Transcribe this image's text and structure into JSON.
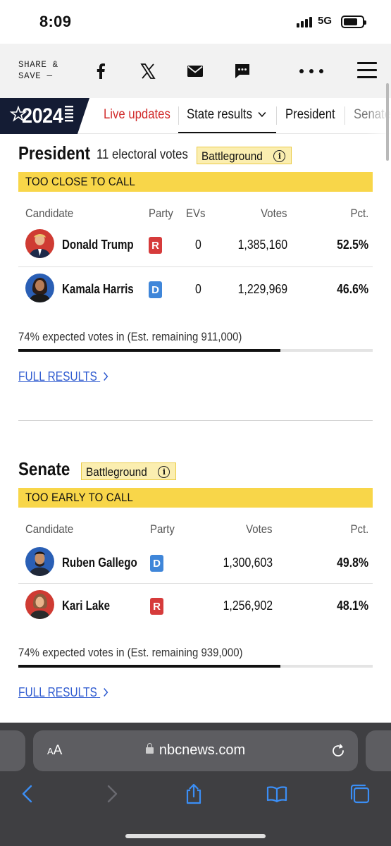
{
  "status": {
    "time": "8:09",
    "network": "5G"
  },
  "share": {
    "label": "SHARE &\nSAVE —"
  },
  "nav": {
    "year": "2024",
    "items": [
      {
        "label": "Live updates"
      },
      {
        "label": "State results"
      },
      {
        "label": "President"
      },
      {
        "label": "Senate"
      }
    ]
  },
  "colors": {
    "accent_red": "#d12b2b",
    "republican": "#d63b3b",
    "democrat": "#3f86d9",
    "call_bar": "#f8d649",
    "badge": "#fbeeb0",
    "link": "#2f5bd0"
  },
  "president": {
    "title": "President",
    "electoral": "11 electoral votes",
    "badge": "Battleground",
    "status": "TOO CLOSE TO CALL",
    "headers": {
      "candidate": "Candidate",
      "party": "Party",
      "evs": "EVs",
      "votes": "Votes",
      "pct": "Pct."
    },
    "rows": [
      {
        "name": "Donald Trump",
        "party": "R",
        "evs": "0",
        "votes": "1,385,160",
        "pct": "52.5%"
      },
      {
        "name": "Kamala Harris",
        "party": "D",
        "evs": "0",
        "votes": "1,229,969",
        "pct": "46.6%"
      }
    ],
    "expected": "74% expected votes in (Est. remaining 911,000)",
    "expected_fraction": 0.74,
    "link": "FULL RESULTS"
  },
  "senate": {
    "title": "Senate",
    "badge": "Battleground",
    "status": "TOO EARLY TO CALL",
    "headers": {
      "candidate": "Candidate",
      "party": "Party",
      "votes": "Votes",
      "pct": "Pct."
    },
    "rows": [
      {
        "name": "Ruben Gallego",
        "party": "D",
        "votes": "1,300,603",
        "pct": "49.8%"
      },
      {
        "name": "Kari Lake",
        "party": "R",
        "votes": "1,256,902",
        "pct": "48.1%"
      }
    ],
    "expected": "74% expected votes in (Est. remaining 939,000)",
    "expected_fraction": 0.74,
    "link": "FULL RESULTS"
  },
  "browser": {
    "aa": "AA",
    "url": "nbcnews.com"
  },
  "icons": {
    "share_facebook": "facebook-icon",
    "share_x": "x-icon",
    "share_email": "email-icon",
    "share_sms": "message-icon",
    "more": "more-icon",
    "menu": "hamburger-menu-icon",
    "info": "info-icon",
    "lock": "lock-icon",
    "reload": "reload-icon",
    "back": "back-icon",
    "forward": "forward-icon",
    "share": "share-icon",
    "bookmarks": "bookmarks-icon",
    "tabs": "tabs-icon"
  }
}
